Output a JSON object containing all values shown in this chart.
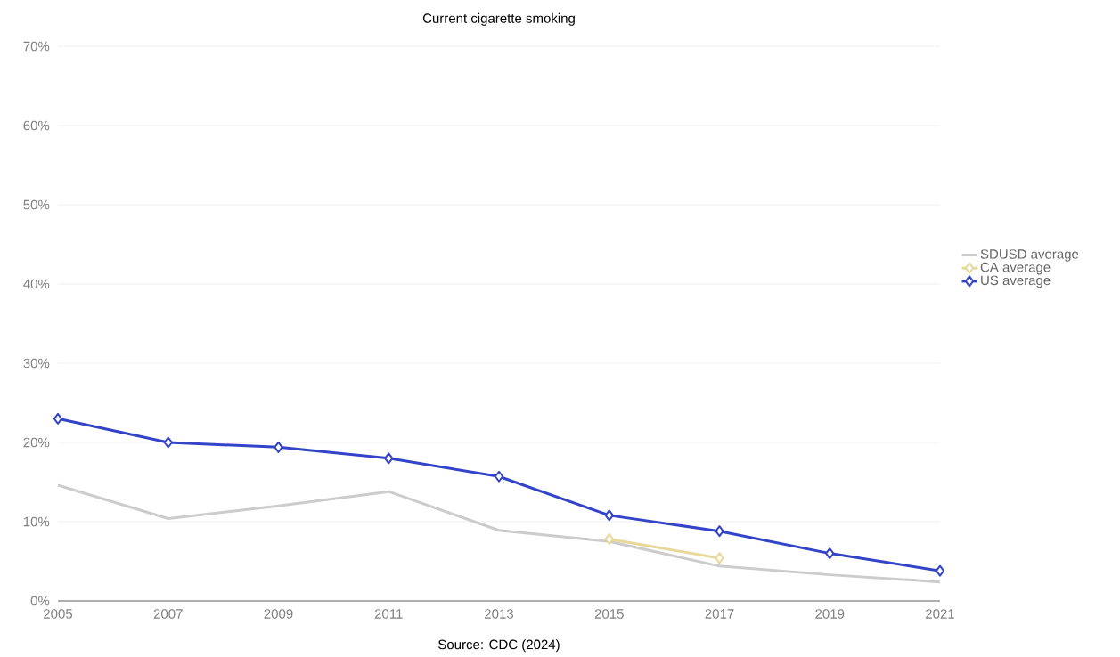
{
  "chart_data": {
    "type": "line",
    "title": "Current cigarette smoking",
    "annotations": [
      "Source: CDC (2024)"
    ],
    "x": [
      2005,
      2007,
      2009,
      2011,
      2013,
      2015,
      2017,
      2019,
      2021
    ],
    "series": [
      {
        "name": "SDUSD average",
        "color": "#cccccc",
        "marker": "none",
        "values": [
          14.6,
          10.4,
          12.0,
          13.8,
          8.9,
          7.5,
          4.4,
          3.3,
          2.4
        ]
      },
      {
        "name": "CA average",
        "color": "#e8d89a",
        "marker": "diamond",
        "values": [
          null,
          null,
          null,
          null,
          null,
          7.8,
          5.4,
          null,
          null
        ]
      },
      {
        "name": "US average",
        "color": "#3344c8",
        "marker": "diamond",
        "values": [
          23.0,
          20.0,
          19.4,
          18.0,
          15.7,
          10.8,
          8.8,
          6.0,
          3.8
        ]
      }
    ],
    "xlim": [
      2005,
      2021
    ],
    "xticks": [
      2005,
      2007,
      2009,
      2011,
      2013,
      2015,
      2017,
      2019,
      2021
    ],
    "ylim": [
      0,
      70
    ],
    "yticks": [
      {
        "value": 0,
        "label": "0%"
      },
      {
        "value": 10,
        "label": "10%"
      },
      {
        "value": 20,
        "label": "20%"
      },
      {
        "value": 30,
        "label": "30%"
      },
      {
        "value": 40,
        "label": "40%"
      },
      {
        "value": 50,
        "label": "50%"
      },
      {
        "value": 60,
        "label": "60%"
      },
      {
        "value": 70,
        "label": "70%"
      }
    ],
    "grid": "y",
    "legend": "right"
  }
}
